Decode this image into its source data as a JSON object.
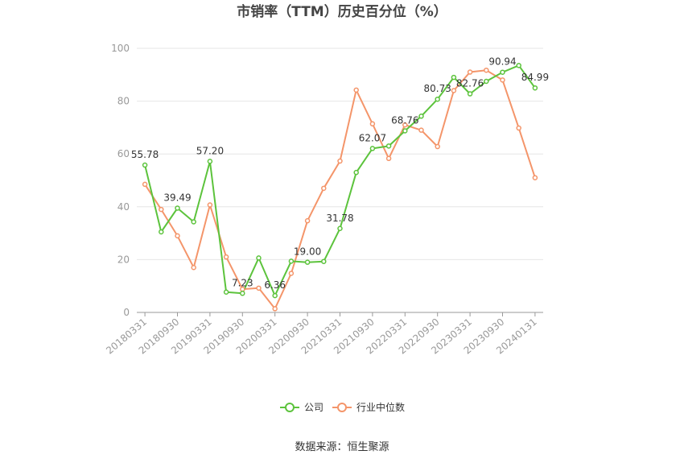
{
  "chart_data": {
    "type": "line",
    "title": "市销率（TTM）历史百分位（%）",
    "source": "数据来源：恒生聚源",
    "ylim": [
      0,
      100
    ],
    "yticks": [
      0,
      20,
      40,
      60,
      80,
      100
    ],
    "xtick_labels": [
      "20180331",
      "20180930",
      "20190331",
      "20190930",
      "20200331",
      "20200930",
      "20210331",
      "20210930",
      "20220331",
      "20220930",
      "20230331",
      "20230930",
      "20240131"
    ],
    "legend_position": "bottom-center",
    "grid": true,
    "series": [
      {
        "name": "公司",
        "color": "#5cc33c",
        "values": [
          55.78,
          30.5,
          39.49,
          34.3,
          57.2,
          7.7,
          7.23,
          20.6,
          6.36,
          19.4,
          19.0,
          19.3,
          31.78,
          53.0,
          62.07,
          63.0,
          68.76,
          74.3,
          80.73,
          89.0,
          82.76,
          87.5,
          90.94,
          93.5,
          84.99
        ],
        "labels": {
          "0": "55.78",
          "2": "39.49",
          "4": "57.20",
          "6": "7.23",
          "8": "6.36",
          "10": "19.00",
          "12": "31.78",
          "14": "62.07",
          "16": "68.76",
          "18": "80.73",
          "20": "82.76",
          "22": "90.94",
          "24": "84.99"
        }
      },
      {
        "name": "行业中位数",
        "color": "#f4956a",
        "values": [
          48.5,
          39.0,
          29.0,
          17.0,
          40.7,
          21.0,
          8.8,
          9.2,
          1.4,
          14.8,
          34.7,
          47.0,
          57.3,
          84.2,
          71.4,
          58.3,
          71.0,
          69.0,
          62.8,
          84.0,
          91.0,
          91.7,
          88.0,
          69.8,
          51.0
        ]
      }
    ]
  }
}
